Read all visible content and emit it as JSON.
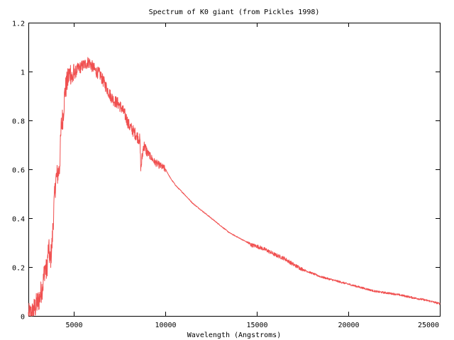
{
  "chart_data": {
    "type": "line",
    "title": "Spectrum of K0 giant (from Pickles 1998)",
    "xlabel": "Wavelength (Angstroms)",
    "ylabel": "",
    "xlim": [
      2500,
      25000
    ],
    "ylim": [
      0,
      1.2
    ],
    "xticks": [
      5000,
      10000,
      15000,
      20000,
      25000
    ],
    "xtick_labels": [
      "5000",
      "10000",
      "15000",
      "20000",
      "25000"
    ],
    "yticks": [
      0,
      0.2,
      0.4,
      0.6,
      0.8,
      1,
      1.2
    ],
    "ytick_labels": [
      "0",
      "0.2",
      "0.4",
      "0.6",
      "0.8",
      "1",
      "1.2"
    ],
    "grid": false,
    "legend": "none",
    "line_color": "#f05050",
    "series": [
      {
        "x": [
          2500,
          2700,
          2900,
          3100,
          3300,
          3400,
          3500,
          3600,
          3700,
          3800,
          3900,
          4000,
          4100,
          4200,
          4300,
          4400,
          4500,
          4600,
          4700,
          4800,
          4900,
          5000,
          5200,
          5400,
          5600,
          5800,
          6000,
          6200,
          6400,
          6600,
          6800,
          7000,
          7200,
          7400,
          7600,
          7800,
          8000,
          8200,
          8400,
          8600,
          8650,
          8800,
          9000,
          9200,
          9400,
          9600,
          9800,
          10000,
          10300,
          10600,
          11000,
          11500,
          12000,
          12500,
          13000,
          13500,
          14000,
          14500,
          14700,
          15000,
          15500,
          16000,
          16500,
          17000,
          17500,
          18000,
          18500,
          19000,
          19500,
          20000,
          20500,
          21000,
          21500,
          22000,
          22500,
          23000,
          23500,
          24000,
          24500,
          25000
        ],
        "y": [
          0.0,
          0.01,
          0.04,
          0.07,
          0.13,
          0.2,
          0.18,
          0.28,
          0.22,
          0.3,
          0.45,
          0.56,
          0.58,
          0.6,
          0.78,
          0.82,
          0.92,
          0.95,
          0.98,
          1.0,
          0.97,
          0.99,
          1.01,
          1.02,
          1.03,
          1.04,
          1.02,
          1.0,
          0.99,
          0.96,
          0.93,
          0.9,
          0.88,
          0.87,
          0.85,
          0.82,
          0.78,
          0.76,
          0.74,
          0.72,
          0.6,
          0.7,
          0.67,
          0.65,
          0.63,
          0.62,
          0.61,
          0.6,
          0.56,
          0.53,
          0.5,
          0.46,
          0.43,
          0.4,
          0.37,
          0.34,
          0.32,
          0.3,
          0.29,
          0.285,
          0.27,
          0.25,
          0.235,
          0.21,
          0.19,
          0.175,
          0.16,
          0.15,
          0.14,
          0.13,
          0.12,
          0.11,
          0.1,
          0.095,
          0.09,
          0.083,
          0.075,
          0.068,
          0.06,
          0.05
        ]
      }
    ]
  }
}
